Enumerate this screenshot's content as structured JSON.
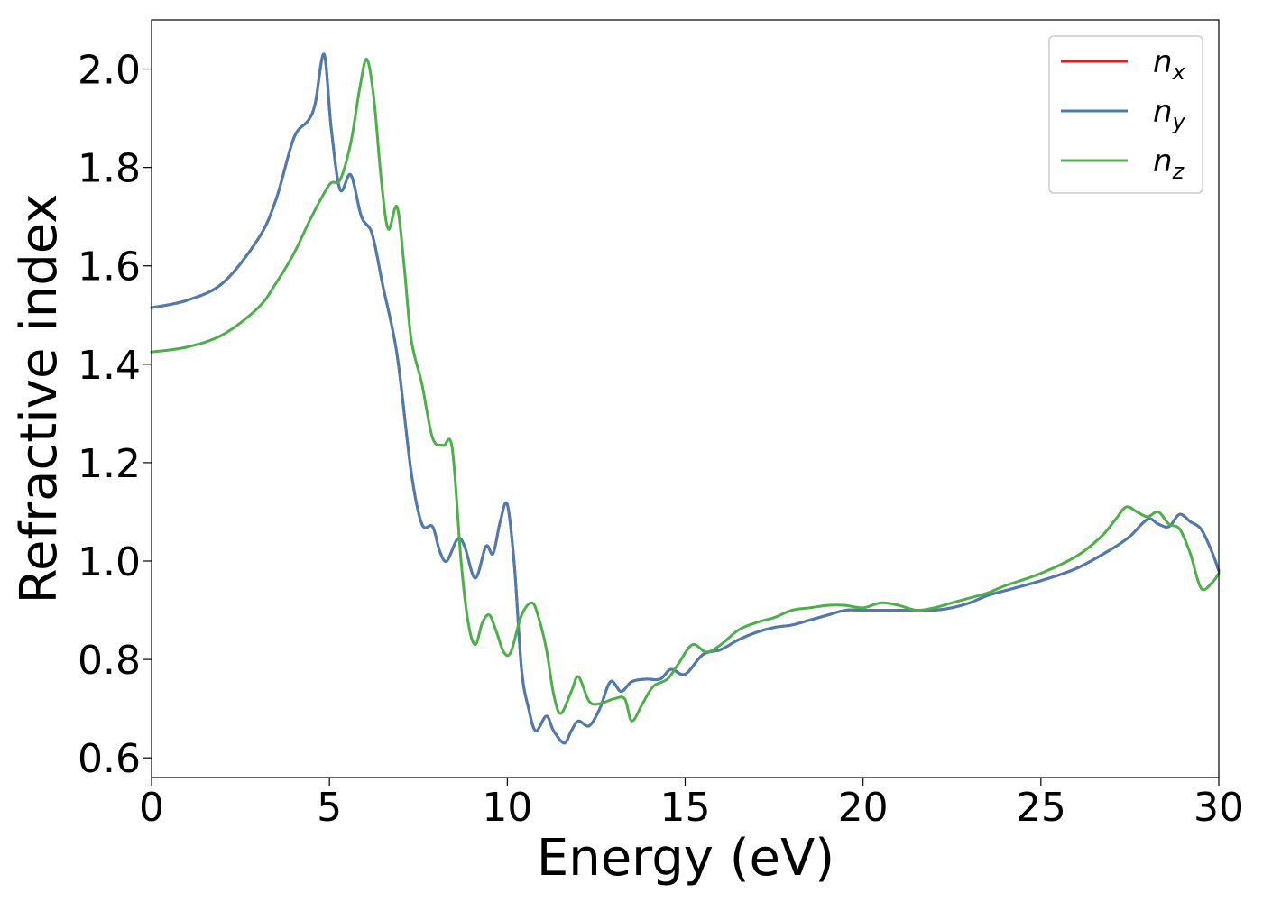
{
  "chart_data": {
    "type": "line",
    "xlabel": "Energy (eV)",
    "ylabel": "Refractive index",
    "xlim": [
      0,
      30
    ],
    "ylim": [
      0.56,
      2.1
    ],
    "xticks": [
      0,
      5,
      10,
      15,
      20,
      25,
      30
    ],
    "yticks": [
      0.6,
      0.8,
      1.0,
      1.2,
      1.4,
      1.6,
      1.8,
      2.0
    ],
    "grid": false,
    "legend_position": "top-right",
    "series": [
      {
        "name": "n",
        "subscript": "x",
        "color": "#e41a1c",
        "x": [
          0,
          1,
          2,
          3,
          3.5,
          4,
          4.4,
          4.6,
          4.85,
          5.05,
          5.3,
          5.6,
          5.9,
          6.2,
          6.5,
          6.9,
          7.3,
          7.6,
          7.9,
          8.1,
          8.3,
          8.6,
          8.8,
          9.1,
          9.4,
          9.6,
          9.8,
          10.0,
          10.2,
          10.4,
          10.6,
          10.8,
          11.1,
          11.3,
          11.6,
          11.8,
          12.0,
          12.3,
          12.6,
          12.9,
          13.2,
          13.5,
          13.9,
          14.3,
          14.6,
          15.0,
          15.5,
          16.0,
          16.5,
          17.0,
          17.5,
          18.0,
          18.5,
          19.0,
          19.5,
          20.0,
          20.5,
          21.0,
          21.5,
          22.0,
          22.5,
          23.0,
          23.5,
          24.0,
          25.0,
          26.0,
          27.0,
          27.5,
          28.0,
          28.3,
          28.6,
          28.9,
          29.2,
          29.5,
          29.8,
          30.0
        ],
        "values": [
          1.515,
          1.53,
          1.565,
          1.655,
          1.735,
          1.86,
          1.895,
          1.93,
          2.03,
          1.88,
          1.755,
          1.785,
          1.7,
          1.665,
          1.56,
          1.42,
          1.18,
          1.075,
          1.07,
          1.02,
          1.0,
          1.045,
          1.03,
          0.965,
          1.03,
          1.015,
          1.08,
          1.115,
          0.99,
          0.78,
          0.7,
          0.655,
          0.685,
          0.655,
          0.63,
          0.655,
          0.675,
          0.665,
          0.7,
          0.755,
          0.735,
          0.755,
          0.76,
          0.76,
          0.78,
          0.77,
          0.81,
          0.82,
          0.84,
          0.855,
          0.865,
          0.87,
          0.88,
          0.89,
          0.9,
          0.9,
          0.9,
          0.9,
          0.9,
          0.9,
          0.905,
          0.915,
          0.93,
          0.94,
          0.96,
          0.985,
          1.025,
          1.05,
          1.085,
          1.075,
          1.07,
          1.095,
          1.08,
          1.065,
          1.02,
          0.98
        ]
      },
      {
        "name": "n",
        "subscript": "y",
        "color": "#4a7cb0",
        "x": [
          0,
          1,
          2,
          3,
          3.5,
          4,
          4.4,
          4.6,
          4.85,
          5.05,
          5.3,
          5.6,
          5.9,
          6.2,
          6.5,
          6.9,
          7.3,
          7.6,
          7.9,
          8.1,
          8.3,
          8.6,
          8.8,
          9.1,
          9.4,
          9.6,
          9.8,
          10.0,
          10.2,
          10.4,
          10.6,
          10.8,
          11.1,
          11.3,
          11.6,
          11.8,
          12.0,
          12.3,
          12.6,
          12.9,
          13.2,
          13.5,
          13.9,
          14.3,
          14.6,
          15.0,
          15.5,
          16.0,
          16.5,
          17.0,
          17.5,
          18.0,
          18.5,
          19.0,
          19.5,
          20.0,
          20.5,
          21.0,
          21.5,
          22.0,
          22.5,
          23.0,
          23.5,
          24.0,
          25.0,
          26.0,
          27.0,
          27.5,
          28.0,
          28.3,
          28.6,
          28.9,
          29.2,
          29.5,
          29.8,
          30.0
        ],
        "values": [
          1.515,
          1.53,
          1.565,
          1.655,
          1.735,
          1.86,
          1.895,
          1.93,
          2.03,
          1.88,
          1.755,
          1.785,
          1.7,
          1.665,
          1.56,
          1.42,
          1.18,
          1.075,
          1.07,
          1.02,
          1.0,
          1.045,
          1.03,
          0.965,
          1.03,
          1.015,
          1.08,
          1.115,
          0.99,
          0.78,
          0.7,
          0.655,
          0.685,
          0.655,
          0.63,
          0.655,
          0.675,
          0.665,
          0.7,
          0.755,
          0.735,
          0.755,
          0.76,
          0.76,
          0.78,
          0.77,
          0.81,
          0.82,
          0.84,
          0.855,
          0.865,
          0.87,
          0.88,
          0.89,
          0.9,
          0.9,
          0.9,
          0.9,
          0.9,
          0.9,
          0.905,
          0.915,
          0.93,
          0.94,
          0.96,
          0.985,
          1.025,
          1.05,
          1.085,
          1.075,
          1.07,
          1.095,
          1.08,
          1.065,
          1.02,
          0.98
        ]
      },
      {
        "name": "n",
        "subscript": "z",
        "color": "#4daf4a",
        "x": [
          0,
          1,
          2,
          3,
          3.5,
          4,
          4.5,
          5.0,
          5.3,
          5.6,
          5.85,
          6.05,
          6.25,
          6.45,
          6.65,
          6.9,
          7.1,
          7.3,
          7.6,
          7.9,
          8.2,
          8.45,
          8.7,
          8.9,
          9.1,
          9.3,
          9.5,
          9.7,
          9.9,
          10.1,
          10.4,
          10.7,
          10.9,
          11.1,
          11.3,
          11.5,
          11.8,
          12.0,
          12.3,
          12.6,
          13.0,
          13.3,
          13.5,
          13.8,
          14.1,
          14.5,
          14.8,
          15.2,
          15.6,
          16.0,
          16.5,
          17.0,
          17.5,
          18.0,
          18.5,
          19.0,
          19.5,
          20.0,
          20.5,
          21.0,
          21.5,
          22.0,
          22.5,
          23.0,
          23.5,
          24.0,
          25.0,
          26.0,
          26.7,
          27.1,
          27.4,
          27.7,
          28.0,
          28.3,
          28.6,
          28.9,
          29.2,
          29.5,
          29.8,
          30.0
        ],
        "values": [
          1.425,
          1.435,
          1.46,
          1.515,
          1.565,
          1.625,
          1.7,
          1.765,
          1.775,
          1.85,
          1.96,
          2.02,
          1.94,
          1.78,
          1.675,
          1.72,
          1.6,
          1.45,
          1.36,
          1.25,
          1.235,
          1.23,
          1.0,
          0.875,
          0.83,
          0.875,
          0.89,
          0.855,
          0.815,
          0.815,
          0.89,
          0.915,
          0.88,
          0.82,
          0.73,
          0.69,
          0.735,
          0.765,
          0.715,
          0.71,
          0.72,
          0.72,
          0.675,
          0.71,
          0.745,
          0.76,
          0.79,
          0.83,
          0.815,
          0.83,
          0.86,
          0.875,
          0.885,
          0.9,
          0.905,
          0.91,
          0.91,
          0.905,
          0.915,
          0.91,
          0.9,
          0.905,
          0.915,
          0.925,
          0.935,
          0.95,
          0.975,
          1.01,
          1.05,
          1.085,
          1.11,
          1.1,
          1.09,
          1.1,
          1.075,
          1.065,
          1.015,
          0.945,
          0.955,
          0.975
        ]
      }
    ]
  }
}
